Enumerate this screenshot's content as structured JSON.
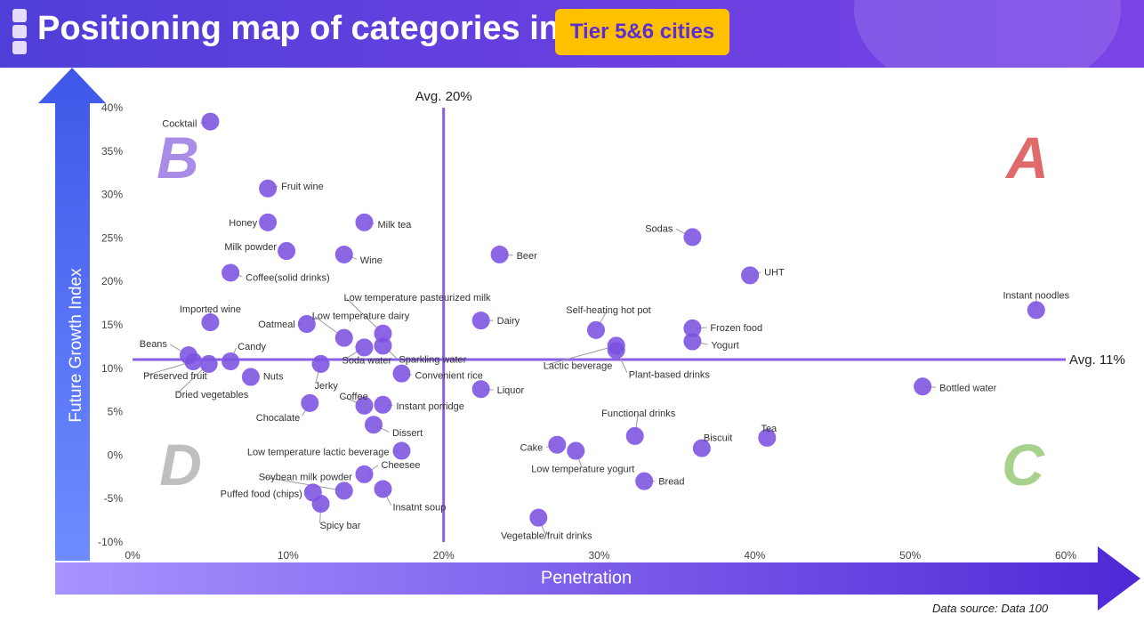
{
  "header": {
    "title": "Positioning map of categories in",
    "badge": "Tier 5&6 cities"
  },
  "source": "Data source: Data 100",
  "colors": {
    "accent": "#7b52e0",
    "avg_line": "#8a5fe6",
    "quad_a": "#e06a6a",
    "quad_b": "#a98be8",
    "quad_c": "#a9d18e",
    "quad_d": "#bfbfbf"
  },
  "chart_data": {
    "type": "scatter",
    "xlabel": "Penetration",
    "ylabel": "Future Growth Index",
    "xlim": [
      0,
      60
    ],
    "ylim": [
      -10,
      40
    ],
    "x_ticks": [
      "0%",
      "10%",
      "20%",
      "30%",
      "40%",
      "50%",
      "60%"
    ],
    "y_ticks": [
      "-10%",
      "-5%",
      "0%",
      "5%",
      "10%",
      "15%",
      "20%",
      "25%",
      "30%",
      "35%",
      "40%"
    ],
    "avg_x": {
      "value": 20,
      "label": "Avg. 20%"
    },
    "avg_y": {
      "value": 11,
      "label": "Avg. 11%"
    },
    "quadrants": [
      "A",
      "B",
      "C",
      "D"
    ],
    "points": [
      {
        "name": "Cocktail",
        "x": 5,
        "y": 38.4
      },
      {
        "name": "Fruit wine",
        "x": 8.7,
        "y": 30.7
      },
      {
        "name": "Honey",
        "x": 8.7,
        "y": 26.8
      },
      {
        "name": "Milk tea",
        "x": 14.9,
        "y": 26.8
      },
      {
        "name": "Milk powder",
        "x": 9.9,
        "y": 23.5
      },
      {
        "name": "Wine",
        "x": 13.6,
        "y": 23.1
      },
      {
        "name": "Beer",
        "x": 23.6,
        "y": 23.1
      },
      {
        "name": "Coffee(solid drinks)",
        "x": 6.3,
        "y": 21
      },
      {
        "name": "Sodas",
        "x": 36,
        "y": 25.1
      },
      {
        "name": "UHT",
        "x": 39.7,
        "y": 20.7
      },
      {
        "name": "Instant noodles",
        "x": 58.1,
        "y": 16.7
      },
      {
        "name": "Imported wine",
        "x": 5,
        "y": 15.3
      },
      {
        "name": "Oatmeal",
        "x": 11.2,
        "y": 15.1
      },
      {
        "name": "Low temperature dairy",
        "x": 13.6,
        "y": 13.5
      },
      {
        "name": "Low temperature pasteurized milk",
        "x": 16.1,
        "y": 14
      },
      {
        "name": "Sparkling water",
        "x": 16.1,
        "y": 12.6
      },
      {
        "name": "Soda water",
        "x": 14.9,
        "y": 12.4
      },
      {
        "name": "Dairy",
        "x": 22.4,
        "y": 15.5
      },
      {
        "name": "Self-heating hot pot",
        "x": 29.8,
        "y": 14.4
      },
      {
        "name": "Frozen food",
        "x": 36,
        "y": 14.6
      },
      {
        "name": "Yogurt",
        "x": 36,
        "y": 13.1
      },
      {
        "name": "Lactic beverage",
        "x": 31.1,
        "y": 12.6
      },
      {
        "name": "Plant-based drinks",
        "x": 31.1,
        "y": 12.1
      },
      {
        "name": "Beans",
        "x": 3.6,
        "y": 11.5
      },
      {
        "name": "Preserved fruit",
        "x": 3.9,
        "y": 10.8
      },
      {
        "name": "Dried vegetables",
        "x": 4.9,
        "y": 10.5
      },
      {
        "name": "Candy",
        "x": 6.3,
        "y": 10.8
      },
      {
        "name": "Jerky",
        "x": 12.1,
        "y": 10.5
      },
      {
        "name": "Nuts",
        "x": 7.6,
        "y": 9
      },
      {
        "name": "Convenient rice",
        "x": 17.3,
        "y": 9.4
      },
      {
        "name": "Liquor",
        "x": 22.4,
        "y": 7.6
      },
      {
        "name": "Bottled water",
        "x": 50.8,
        "y": 7.9
      },
      {
        "name": "Chocalate",
        "x": 11.4,
        "y": 6
      },
      {
        "name": "Coffee",
        "x": 14.9,
        "y": 5.7
      },
      {
        "name": "Instant porridge",
        "x": 16.1,
        "y": 5.8
      },
      {
        "name": "Dissert",
        "x": 15.5,
        "y": 3.5
      },
      {
        "name": "Functional drinks",
        "x": 32.3,
        "y": 2.2
      },
      {
        "name": "Tea",
        "x": 40.8,
        "y": 2
      },
      {
        "name": "Biscuit",
        "x": 36.6,
        "y": 0.8
      },
      {
        "name": "Cake",
        "x": 27.3,
        "y": 1.2
      },
      {
        "name": "Low temperature yogurt",
        "x": 28.5,
        "y": 0.5
      },
      {
        "name": "Low temperature lactic beverage",
        "x": 17.3,
        "y": 0.5
      },
      {
        "name": "Cheesee",
        "x": 14.9,
        "y": -2.2
      },
      {
        "name": "Bread",
        "x": 32.9,
        "y": -3
      },
      {
        "name": "Soybean milk powder",
        "x": 13.6,
        "y": -4.1
      },
      {
        "name": "Insatnt soup",
        "x": 16.1,
        "y": -3.9
      },
      {
        "name": "Puffed food (chips)",
        "x": 11.6,
        "y": -4.3
      },
      {
        "name": "Spicy bar",
        "x": 12.1,
        "y": -5.6
      },
      {
        "name": "Vegetable/fruit drinks",
        "x": 26.1,
        "y": -7.2
      }
    ]
  }
}
